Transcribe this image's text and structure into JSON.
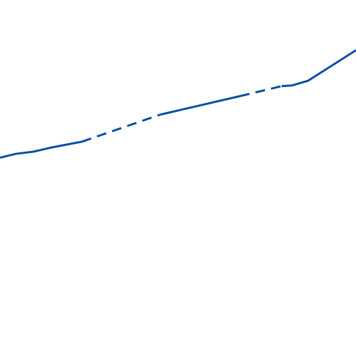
{
  "chart_data": {
    "type": "line",
    "xlim": [
      0,
      100
    ],
    "ylim": [
      0,
      100
    ],
    "series": [
      {
        "color": "#034ea2",
        "dashed": false,
        "x": [
          0,
          4.5,
          9.4,
          14.6,
          23,
          null,
          45,
          67.4,
          null,
          79.1,
          82,
          86.5,
          100
        ],
        "values": [
          55.7,
          56.8,
          57.4,
          58.6,
          60.2,
          null,
          67.8,
          73.0,
          null,
          75.8,
          76.0,
          77.3,
          85.9
        ]
      },
      {
        "color": "#034ea2",
        "dashed": true,
        "x": [
          23,
          45,
          null,
          67.4,
          79.1
        ],
        "values": [
          60.2,
          67.8,
          null,
          73.0,
          75.8
        ]
      }
    ]
  }
}
